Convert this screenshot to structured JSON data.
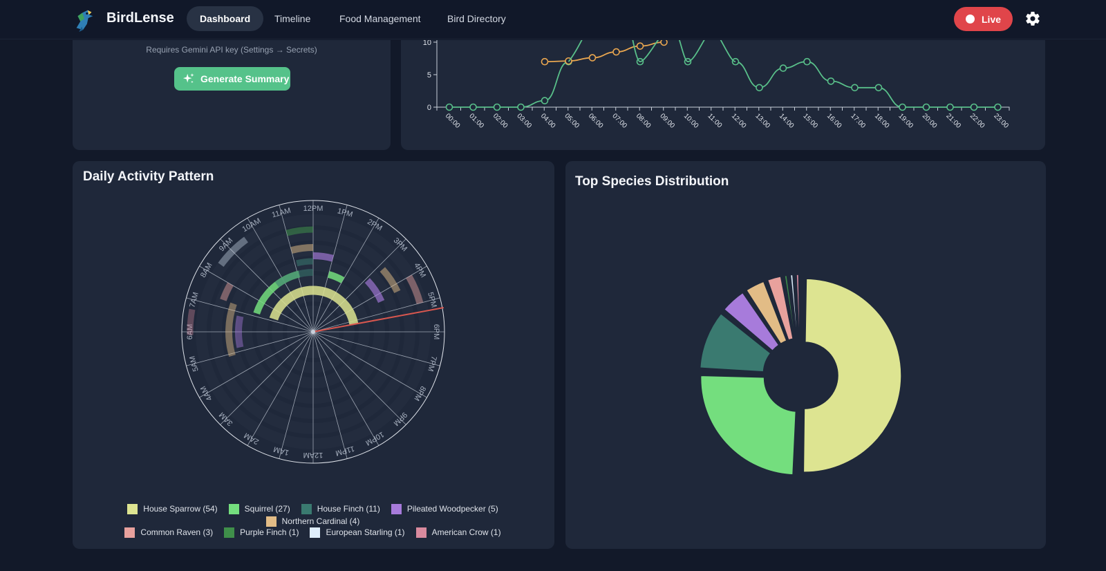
{
  "nav": {
    "brand": "BirdLense",
    "tabs": [
      {
        "label": "Dashboard",
        "active": true
      },
      {
        "label": "Timeline",
        "active": false
      },
      {
        "label": "Food Management",
        "active": false
      },
      {
        "label": "Bird Directory",
        "active": false
      }
    ],
    "live_label": "Live",
    "live_color": "#e0454a"
  },
  "summary": {
    "api_note": "Requires Gemini API key (Settings → Secrets)",
    "generate_label": "Generate Summary",
    "accent": "#55c28a"
  },
  "hourly_chart": {
    "chart_data": {
      "type": "line",
      "x": [
        "00:00",
        "01:00",
        "02:00",
        "03:00",
        "04:00",
        "05:00",
        "06:00",
        "07:00",
        "08:00",
        "09:00",
        "10:00",
        "11:00",
        "12:00",
        "13:00",
        "14:00",
        "15:00",
        "16:00",
        "17:00",
        "18:00",
        "19:00",
        "20:00",
        "21:00",
        "22:00",
        "23:00"
      ],
      "y_ticks": [
        "0",
        "5",
        "10"
      ],
      "ylim_visible": [
        0,
        10
      ],
      "series": [
        {
          "color": "#59c08a",
          "values": [
            0,
            0,
            0,
            0,
            1,
            7,
            null,
            null,
            7,
            null,
            7,
            null,
            7,
            3,
            6,
            7,
            4,
            3,
            3,
            0,
            0,
            0,
            0,
            0
          ]
        },
        {
          "color": "#eaa750",
          "values": [
            null,
            null,
            null,
            null,
            7,
            7.1,
            7.6,
            8.5,
            9.4,
            10,
            null,
            null,
            null,
            null,
            null,
            null,
            null,
            null,
            null,
            null,
            null,
            null,
            null,
            null
          ]
        }
      ]
    }
  },
  "activity": {
    "title": "Daily Activity Pattern",
    "chart_data": {
      "type": "polar-activity",
      "hour_labels": [
        "12AM",
        "1AM",
        "2AM",
        "3AM",
        "4AM",
        "5AM",
        "6AM",
        "7AM",
        "8AM",
        "9AM",
        "10AM",
        "11AM",
        "12PM",
        "1PM",
        "2PM",
        "3PM",
        "4PM",
        "5PM",
        "6PM",
        "7PM",
        "8PM",
        "9PM",
        "10PM",
        "11PM"
      ],
      "current_time_hour": 17.3,
      "current_time_color": "#d9574f",
      "series": [
        {
          "name": "House Sparrow",
          "count": 54,
          "color": "#dde491"
        },
        {
          "name": "Squirrel",
          "count": 27,
          "color": "#74de7e"
        },
        {
          "name": "House Finch",
          "count": 11,
          "color": "#3a7a70"
        },
        {
          "name": "Pileated Woodpecker",
          "count": 5,
          "color": "#a77bdb"
        },
        {
          "name": "Northern Cardinal",
          "count": 4,
          "color": "#e2bc86"
        },
        {
          "name": "Common Raven",
          "count": 3,
          "color": "#e8a19d"
        },
        {
          "name": "Purple Finch",
          "count": 1,
          "color": "#3f8f4a"
        },
        {
          "name": "European Starling",
          "count": 1,
          "color": "#dfeefc"
        },
        {
          "name": "American Crow",
          "count": 1,
          "color": "#d98a9e"
        }
      ]
    },
    "legend": [
      "House Sparrow (54)",
      "Squirrel (27)",
      "House Finch (11)",
      "Pileated Woodpecker (5)",
      "Northern Cardinal (4)",
      "Common Raven (3)",
      "Purple Finch (1)",
      "European Starling (1)",
      "American Crow (1)"
    ]
  },
  "species": {
    "title": "Top Species Distribution",
    "chart_data": {
      "type": "pie",
      "categories": [
        "House Sparrow",
        "Squirrel",
        "House Finch",
        "Pileated Woodpecker",
        "Northern Cardinal",
        "Common Raven",
        "Purple Finch",
        "European Starling",
        "American Crow"
      ],
      "values": [
        54,
        27,
        11,
        5,
        4,
        3,
        1,
        1,
        1
      ],
      "colors": [
        "#dde491",
        "#74de7e",
        "#3a7a70",
        "#a77bdb",
        "#e2bc86",
        "#e8a19d",
        "#3f8f4a",
        "#dfeefc",
        "#d98a9e"
      ],
      "donut": true
    }
  }
}
